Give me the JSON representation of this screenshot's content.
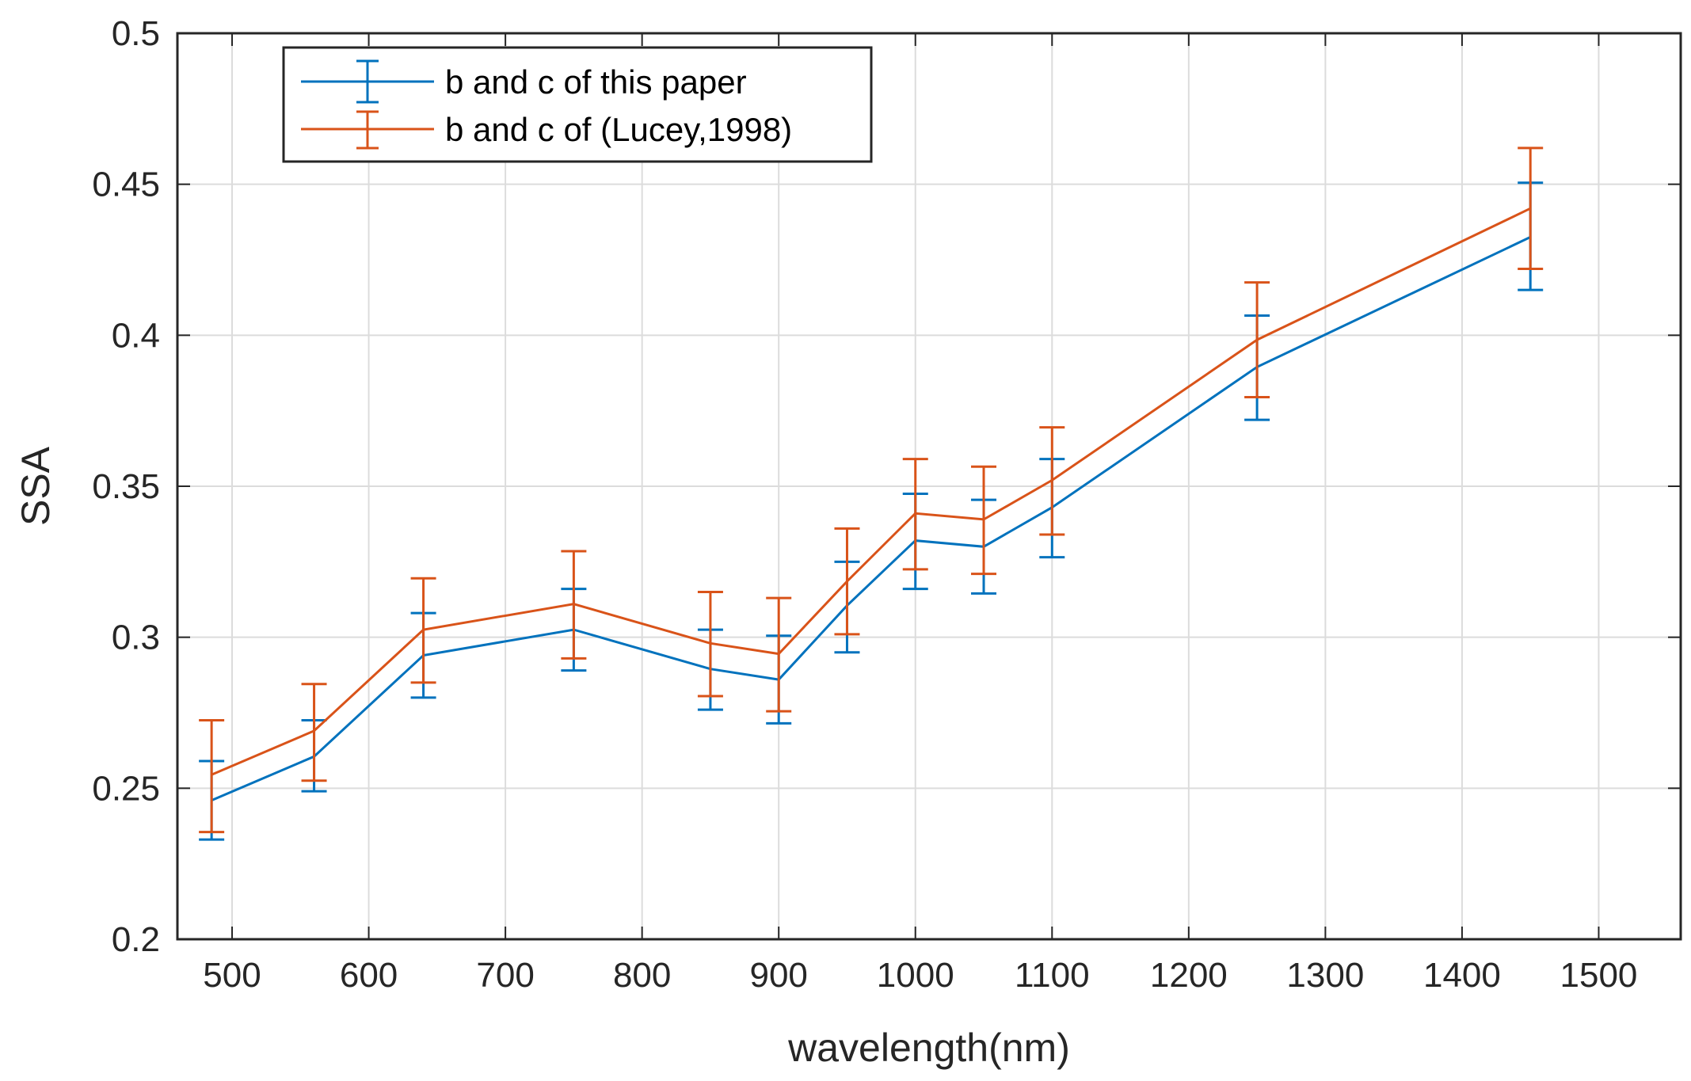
{
  "chart_data": {
    "type": "line",
    "xlabel": "wavelength(nm)",
    "ylabel": "SSA",
    "xlim": [
      460,
      1560
    ],
    "ylim": [
      0.2,
      0.5
    ],
    "xticks": [
      500,
      600,
      700,
      800,
      900,
      1000,
      1100,
      1200,
      1300,
      1400,
      1500
    ],
    "yticks": [
      0.2,
      0.25,
      0.3,
      0.35,
      0.4,
      0.45,
      0.5
    ],
    "ytick_labels": [
      "0.2",
      "0.25",
      "0.3",
      "0.35",
      "0.4",
      "0.45",
      "0.5"
    ],
    "grid": true,
    "legend_position": "top-left",
    "x": [
      485,
      560,
      640,
      750,
      850,
      900,
      950,
      1000,
      1050,
      1100,
      1250,
      1450
    ],
    "series": [
      {
        "name": "b and c of this paper",
        "color": "#0072BD",
        "values": [
          0.246,
          0.2605,
          0.294,
          0.3025,
          0.2895,
          0.286,
          0.3105,
          0.332,
          0.33,
          0.343,
          0.3895,
          0.4325
        ],
        "err_lower": [
          0.233,
          0.249,
          0.28,
          0.289,
          0.276,
          0.2715,
          0.295,
          0.316,
          0.3145,
          0.3265,
          0.372,
          0.415
        ],
        "err_upper": [
          0.259,
          0.2725,
          0.308,
          0.316,
          0.3025,
          0.3005,
          0.325,
          0.3475,
          0.3455,
          0.359,
          0.4065,
          0.4505
        ]
      },
      {
        "name": "b and c of (Lucey,1998)",
        "color": "#D95319",
        "values": [
          0.2545,
          0.269,
          0.3025,
          0.311,
          0.298,
          0.2945,
          0.3185,
          0.341,
          0.339,
          0.352,
          0.3985,
          0.442
        ],
        "err_lower": [
          0.2355,
          0.2525,
          0.285,
          0.293,
          0.2805,
          0.2755,
          0.301,
          0.3225,
          0.321,
          0.334,
          0.3795,
          0.422
        ],
        "err_upper": [
          0.2725,
          0.2845,
          0.3195,
          0.3285,
          0.315,
          0.313,
          0.336,
          0.359,
          0.3565,
          0.3695,
          0.4175,
          0.462
        ]
      }
    ]
  }
}
